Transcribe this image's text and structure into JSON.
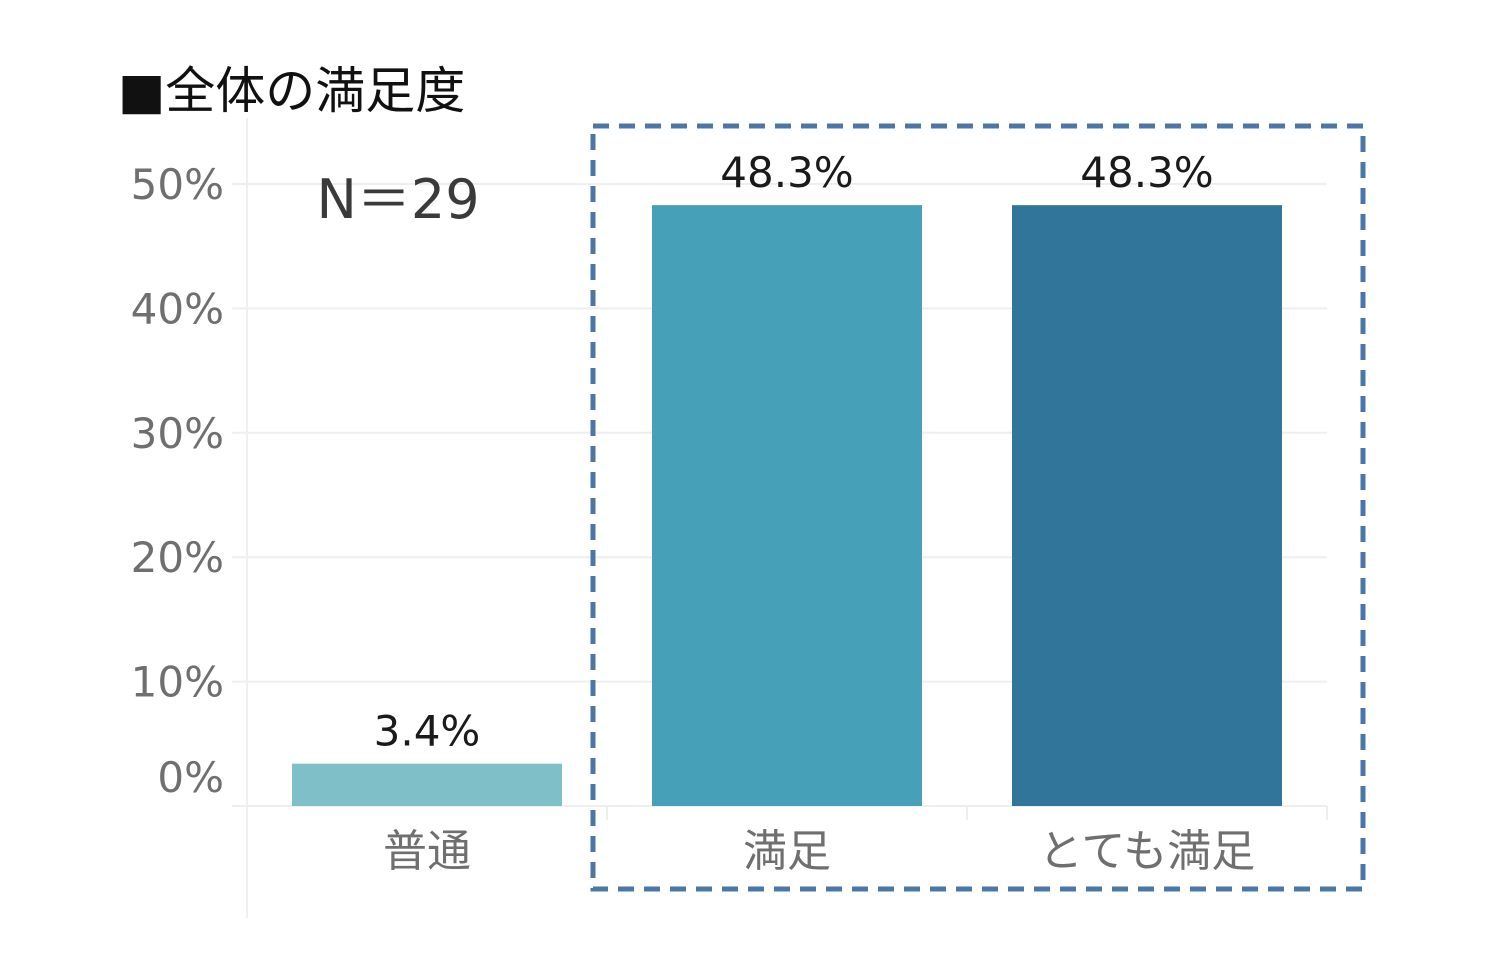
{
  "chart_data": {
    "type": "bar",
    "title": "■全体の満足度",
    "annotation": "N＝29",
    "categories": [
      "普通",
      "満足",
      "とても満足"
    ],
    "values": [
      3.4,
      48.3,
      48.3
    ],
    "value_labels": [
      "3.4%",
      "48.3%",
      "48.3%"
    ],
    "bar_colors": [
      "#7fc0c8",
      "#46a1b8",
      "#32759a"
    ],
    "ylim": [
      0,
      50
    ],
    "yticks": [
      0,
      10,
      20,
      30,
      40,
      50
    ],
    "ytick_labels": [
      "0%",
      "10%",
      "20%",
      "30%",
      "40%",
      "50%"
    ],
    "xlabel": "",
    "ylabel": "",
    "grid": true,
    "highlight_box": {
      "categories": [
        "満足",
        "とても満足"
      ],
      "color": "#4a77a8",
      "style": "dashed"
    }
  }
}
